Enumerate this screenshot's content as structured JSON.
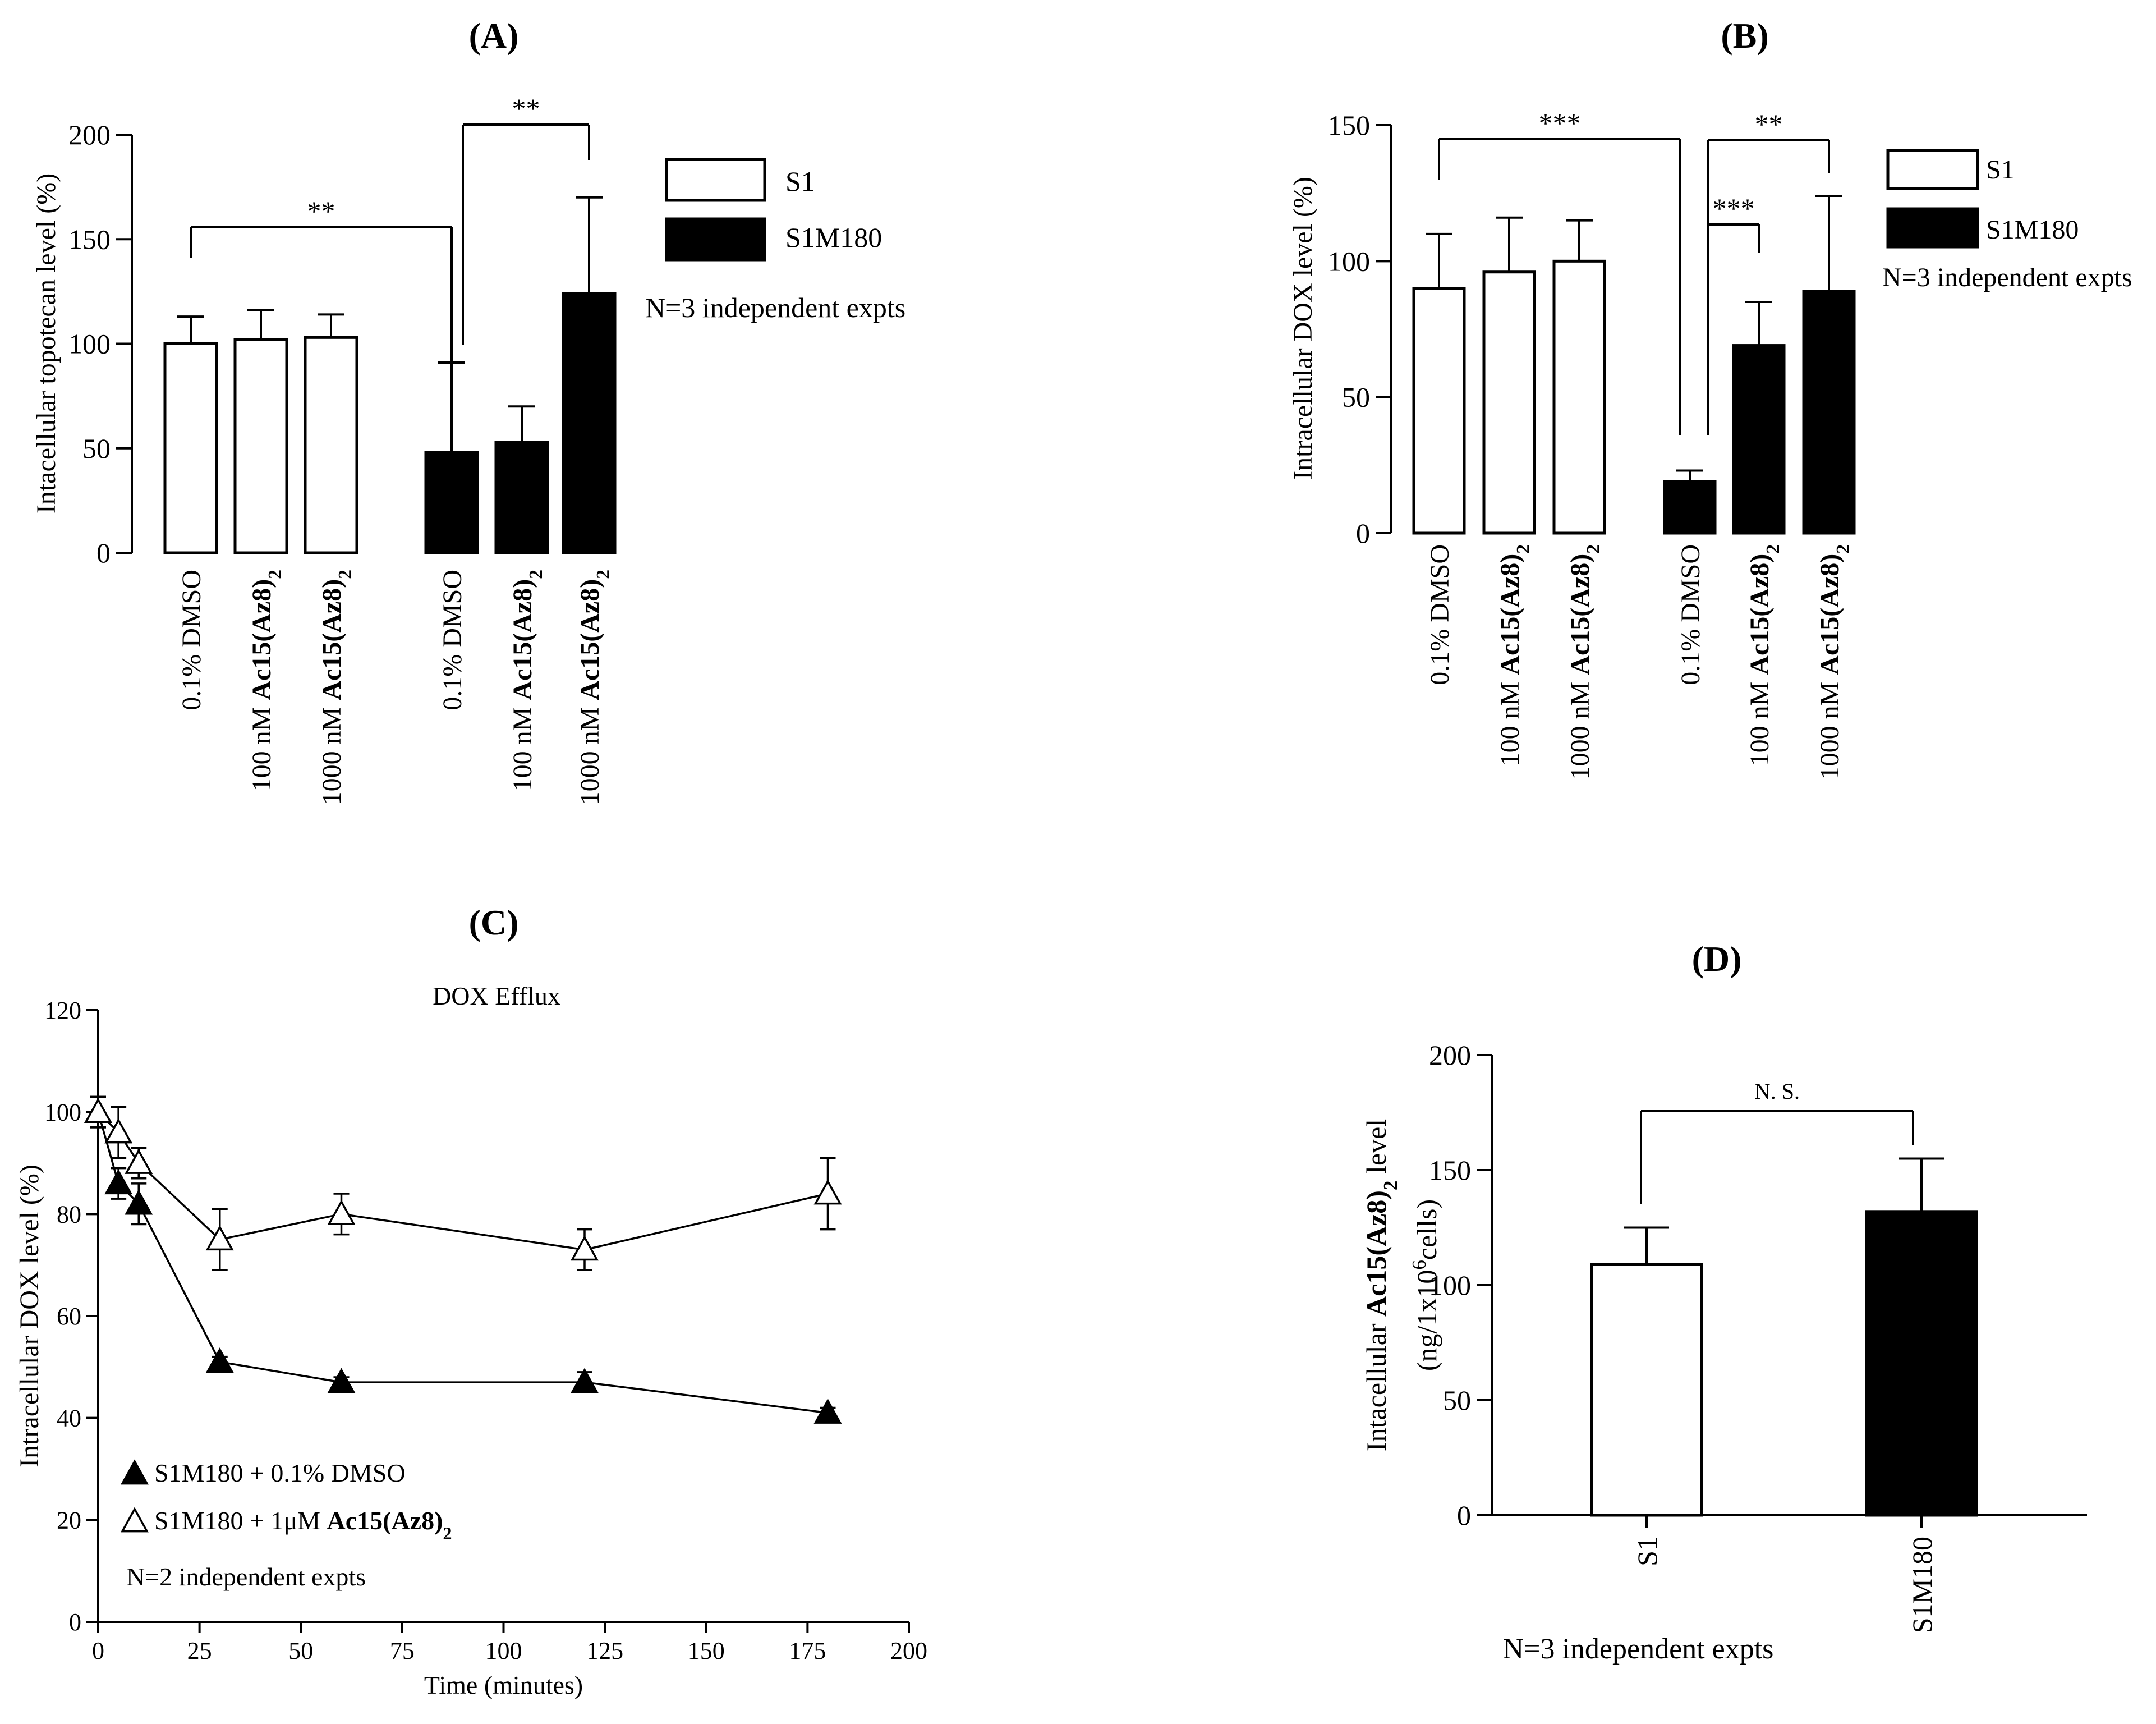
{
  "chart_data": [
    {
      "panel": "(A)",
      "type": "bar",
      "ylabel": "Intacellular topotecan level (%)",
      "ylim": [
        0,
        200
      ],
      "yticks": [
        0,
        50,
        100,
        150,
        200
      ],
      "series": [
        {
          "name": "S1",
          "color": "#ffffff",
          "categories": [
            "0.1% DMSO",
            "100 nM |Ac15(Az8)|2",
            "1000 nM |Ac15(Az8)|2"
          ],
          "values": [
            100,
            102,
            103
          ],
          "errors": [
            13,
            14,
            11
          ]
        },
        {
          "name": "S1M180",
          "color": "#000000",
          "categories": [
            "0.1% DMSO",
            "100 nM |Ac15(Az8)|2",
            "1000 nM |Ac15(Az8)|2"
          ],
          "values": [
            48,
            53,
            124
          ],
          "errors": [
            43,
            17,
            46
          ]
        }
      ],
      "significance": [
        "**",
        "**"
      ],
      "legend": [
        "S1",
        "S1M180"
      ],
      "note": "N=3 independent expts"
    },
    {
      "panel": "(B)",
      "type": "bar",
      "ylabel": "Intracellular DOX level (%)",
      "ylim": [
        0,
        150
      ],
      "yticks": [
        0,
        50,
        100,
        150
      ],
      "series": [
        {
          "name": "S1",
          "color": "#ffffff",
          "categories": [
            "0.1% DMSO",
            "100 nM  |Ac15(Az8)|2",
            "1000 nM  |Ac15(Az8)|2"
          ],
          "values": [
            90,
            96,
            100
          ],
          "errors": [
            20,
            20,
            15
          ]
        },
        {
          "name": "S1M180",
          "color": "#000000",
          "categories": [
            "0.1% DMSO",
            "100 nM  |Ac15(Az8)|2",
            "1000 nM  |Ac15(Az8)|2"
          ],
          "values": [
            19,
            69,
            89
          ],
          "errors": [
            4,
            16,
            35
          ]
        }
      ],
      "significance": [
        "***",
        "***",
        "**"
      ],
      "legend": [
        "S1",
        "S1M180"
      ],
      "note": "N=3 independent expts"
    },
    {
      "panel": "(C)",
      "type": "line",
      "title": "DOX Efflux",
      "xlabel": "Time (minutes)",
      "ylabel": "Intracellular DOX level (%)",
      "xlim": [
        0,
        200
      ],
      "ylim": [
        0,
        120
      ],
      "xticks": [
        0,
        25,
        50,
        75,
        100,
        125,
        150,
        175,
        200
      ],
      "yticks": [
        0,
        20,
        40,
        60,
        80,
        100,
        120
      ],
      "series": [
        {
          "name": "S1M180 + 0.1% DMSO",
          "label_parts": [
            "S1M180 + 0.1% DMSO",
            "",
            ""
          ],
          "marker": "filled-triangle",
          "x": [
            0,
            5,
            10,
            30,
            60,
            120,
            180
          ],
          "y": [
            100,
            86,
            82,
            51,
            47,
            47,
            41
          ],
          "errors": [
            3,
            3,
            4,
            1,
            1,
            2,
            1
          ]
        },
        {
          "name": "S1M180 + 1μM Ac15(Az8)2",
          "label_parts": [
            "S1M180 + 1μM ",
            "Ac15(Az8)",
            "2"
          ],
          "marker": "open-triangle",
          "x": [
            0,
            5,
            10,
            30,
            60,
            120,
            180
          ],
          "y": [
            100,
            96,
            90,
            75,
            80,
            73,
            84
          ],
          "errors": [
            3,
            5,
            3,
            6,
            4,
            4,
            7
          ]
        }
      ],
      "note": "N=2 independent expts"
    },
    {
      "panel": "(D)",
      "type": "bar",
      "ylabel_parts": [
        "Intacellular ",
        "Ac15(Az8)",
        "2",
        " level"
      ],
      "ylabel2_parts": [
        "(ng/1x10",
        "6",
        "cells)"
      ],
      "ylim": [
        0,
        200
      ],
      "yticks": [
        0,
        50,
        100,
        150,
        200
      ],
      "categories": [
        "S1",
        "S1M180"
      ],
      "values": [
        109,
        132
      ],
      "errors": [
        16,
        23
      ],
      "colors": [
        "#ffffff",
        "#000000"
      ],
      "significance": "N. S.",
      "note": "N=3 independent expts"
    }
  ]
}
